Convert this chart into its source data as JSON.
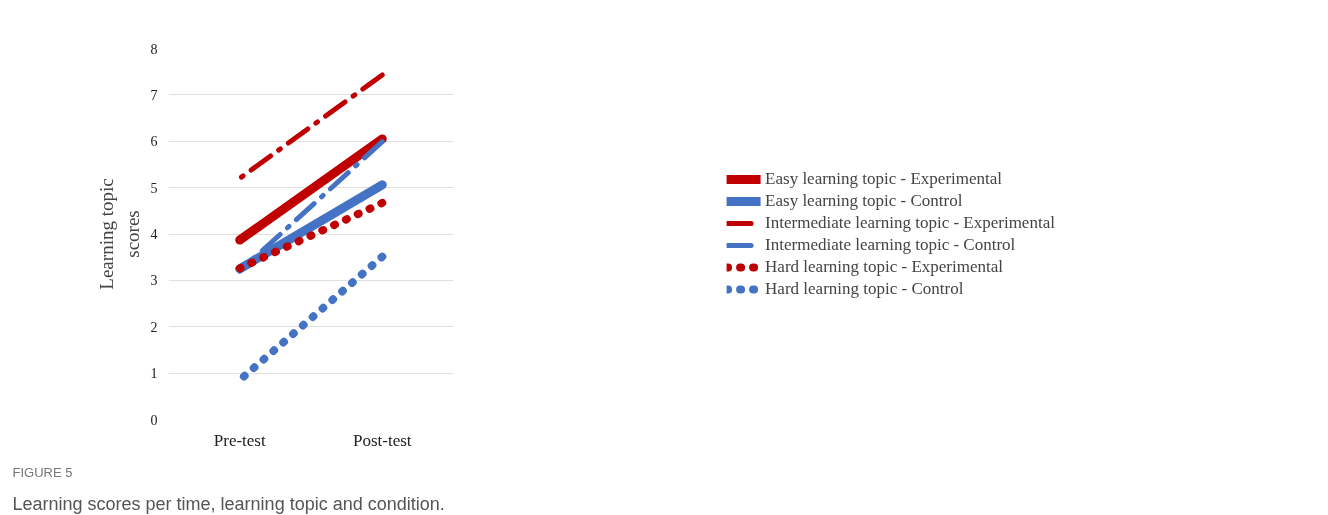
{
  "chart_data": {
    "type": "line",
    "ylabel": "Learning topic\nscores",
    "categories": [
      "Pre-test",
      "Post-test"
    ],
    "series": [
      {
        "name": "Easy learning topic - Experimental",
        "color": "#c00000",
        "line_style": "solid",
        "values": [
          3.87,
          6.05
        ]
      },
      {
        "name": "Easy learning topic - Control",
        "color": "#4472c4",
        "line_style": "solid",
        "values": [
          3.25,
          5.06
        ]
      },
      {
        "name": "Intermediate learning topic - Experimental",
        "color": "#c00000",
        "line_style": "dashed",
        "values": [
          5.2,
          7.43
        ]
      },
      {
        "name": "Intermediate learning topic - Control",
        "color": "#4472c4",
        "line_style": "dashed",
        "values": [
          3.2,
          5.99
        ]
      },
      {
        "name": "Hard learning topic - Experimental",
        "color": "#c00000",
        "line_style": "dotted",
        "values": [
          3.26,
          4.67
        ]
      },
      {
        "name": "Hard learning topic - Control",
        "color": "#4472c4",
        "line_style": "dotted",
        "values": [
          0.85,
          3.51
        ]
      }
    ],
    "ylim": [
      0,
      8
    ],
    "yticks": [
      0,
      1,
      2,
      3,
      4,
      5,
      6,
      7,
      8
    ],
    "grid": "y",
    "legend": "right",
    "marker": "none",
    "annotations": [
      "FIGURE 5",
      "Learning scores per time, learning topic and condition."
    ]
  }
}
